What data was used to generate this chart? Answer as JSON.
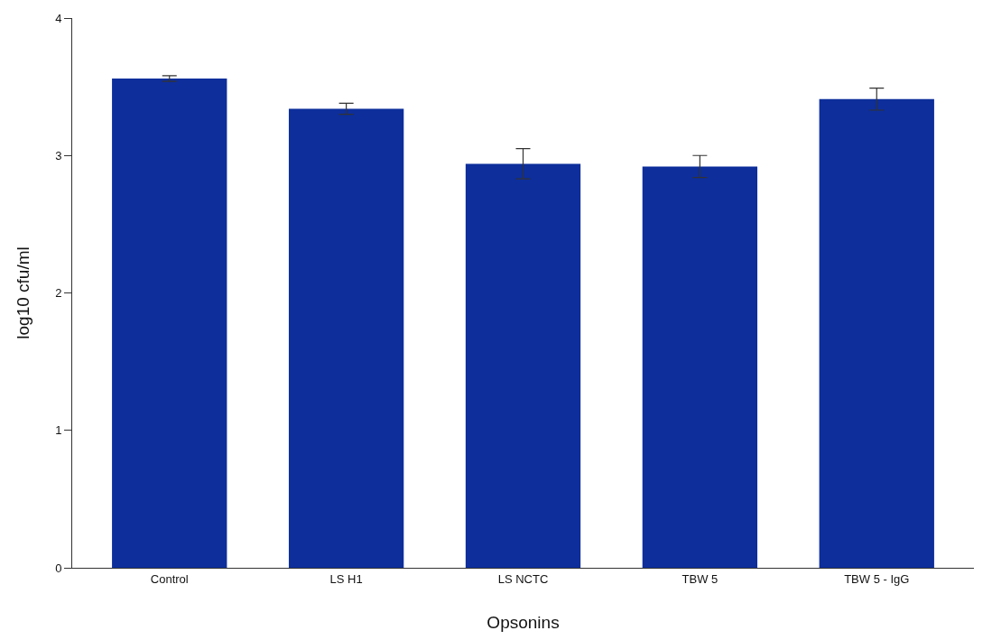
{
  "chart_data": {
    "type": "bar",
    "xlabel": "Opsonins",
    "ylabel": "log10 cfu/ml",
    "categories": [
      "Control",
      "LS H1",
      "LS NCTC",
      "TBW 5",
      "TBW 5 - IgG"
    ],
    "values": [
      3.56,
      3.34,
      2.94,
      2.92,
      3.41
    ],
    "errors": [
      0.02,
      0.04,
      0.11,
      0.08,
      0.08
    ],
    "color": "#0d2e9b",
    "ylim": [
      0,
      4
    ],
    "yticks": [
      0,
      1,
      2,
      3,
      4
    ],
    "grid": false,
    "legend": false
  }
}
